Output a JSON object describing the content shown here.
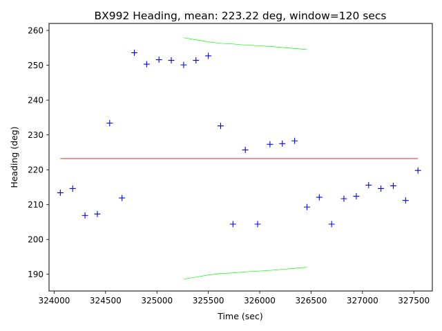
{
  "chart_data": {
    "type": "scatter",
    "title": "BX992 Heading, mean: 223.22 deg, window=120 secs",
    "xlabel": "Time (sec)",
    "ylabel": "Heading (deg)",
    "xlim": [
      323950,
      327680
    ],
    "ylim": [
      185.2,
      262.0
    ],
    "xticks": [
      324000,
      324500,
      325000,
      325500,
      326000,
      326500,
      327000,
      327500
    ],
    "yticks": [
      190,
      200,
      210,
      220,
      230,
      240,
      250,
      260
    ],
    "grid": false,
    "colors": {
      "points": "#0000ff",
      "mean": "#ff0000",
      "band": "#00ff00"
    },
    "series": [
      {
        "type": "scatter",
        "marker": "+",
        "x": [
          324060,
          324180,
          324300,
          324420,
          324540,
          324660,
          324780,
          324900,
          325020,
          325140,
          325260,
          325380,
          325500,
          325620,
          325740,
          325860,
          325980,
          326100,
          326220,
          326340,
          326460,
          326580,
          326700,
          326820,
          326940,
          327060,
          327180,
          327300,
          327420,
          327540
        ],
        "y": [
          213.4,
          214.6,
          206.9,
          207.3,
          233.4,
          211.9,
          253.6,
          250.3,
          251.6,
          251.4,
          250.1,
          251.4,
          252.7,
          232.6,
          204.4,
          225.7,
          204.4,
          227.3,
          227.5,
          228.3,
          209.3,
          212.1,
          204.4,
          211.7,
          212.4,
          215.6,
          214.6,
          215.4,
          211.2,
          219.8
        ]
      },
      {
        "type": "line",
        "x": [
          324060,
          327540
        ],
        "y": [
          223.22,
          223.22
        ]
      },
      {
        "type": "line",
        "x": [
          325260,
          325380,
          325500,
          325620,
          325740,
          325860,
          325980,
          326100,
          326220,
          326340,
          326460
        ],
        "y": [
          257.9,
          257.3,
          256.7,
          256.3,
          256.1,
          255.8,
          255.6,
          255.4,
          255.1,
          254.8,
          254.5
        ]
      },
      {
        "type": "line",
        "x": [
          325260,
          325380,
          325500,
          325620,
          325740,
          325860,
          325980,
          326100,
          326220,
          326340,
          326460
        ],
        "y": [
          188.6,
          189.2,
          189.8,
          190.2,
          190.4,
          190.7,
          190.9,
          191.1,
          191.4,
          191.7,
          192.0
        ]
      }
    ]
  }
}
